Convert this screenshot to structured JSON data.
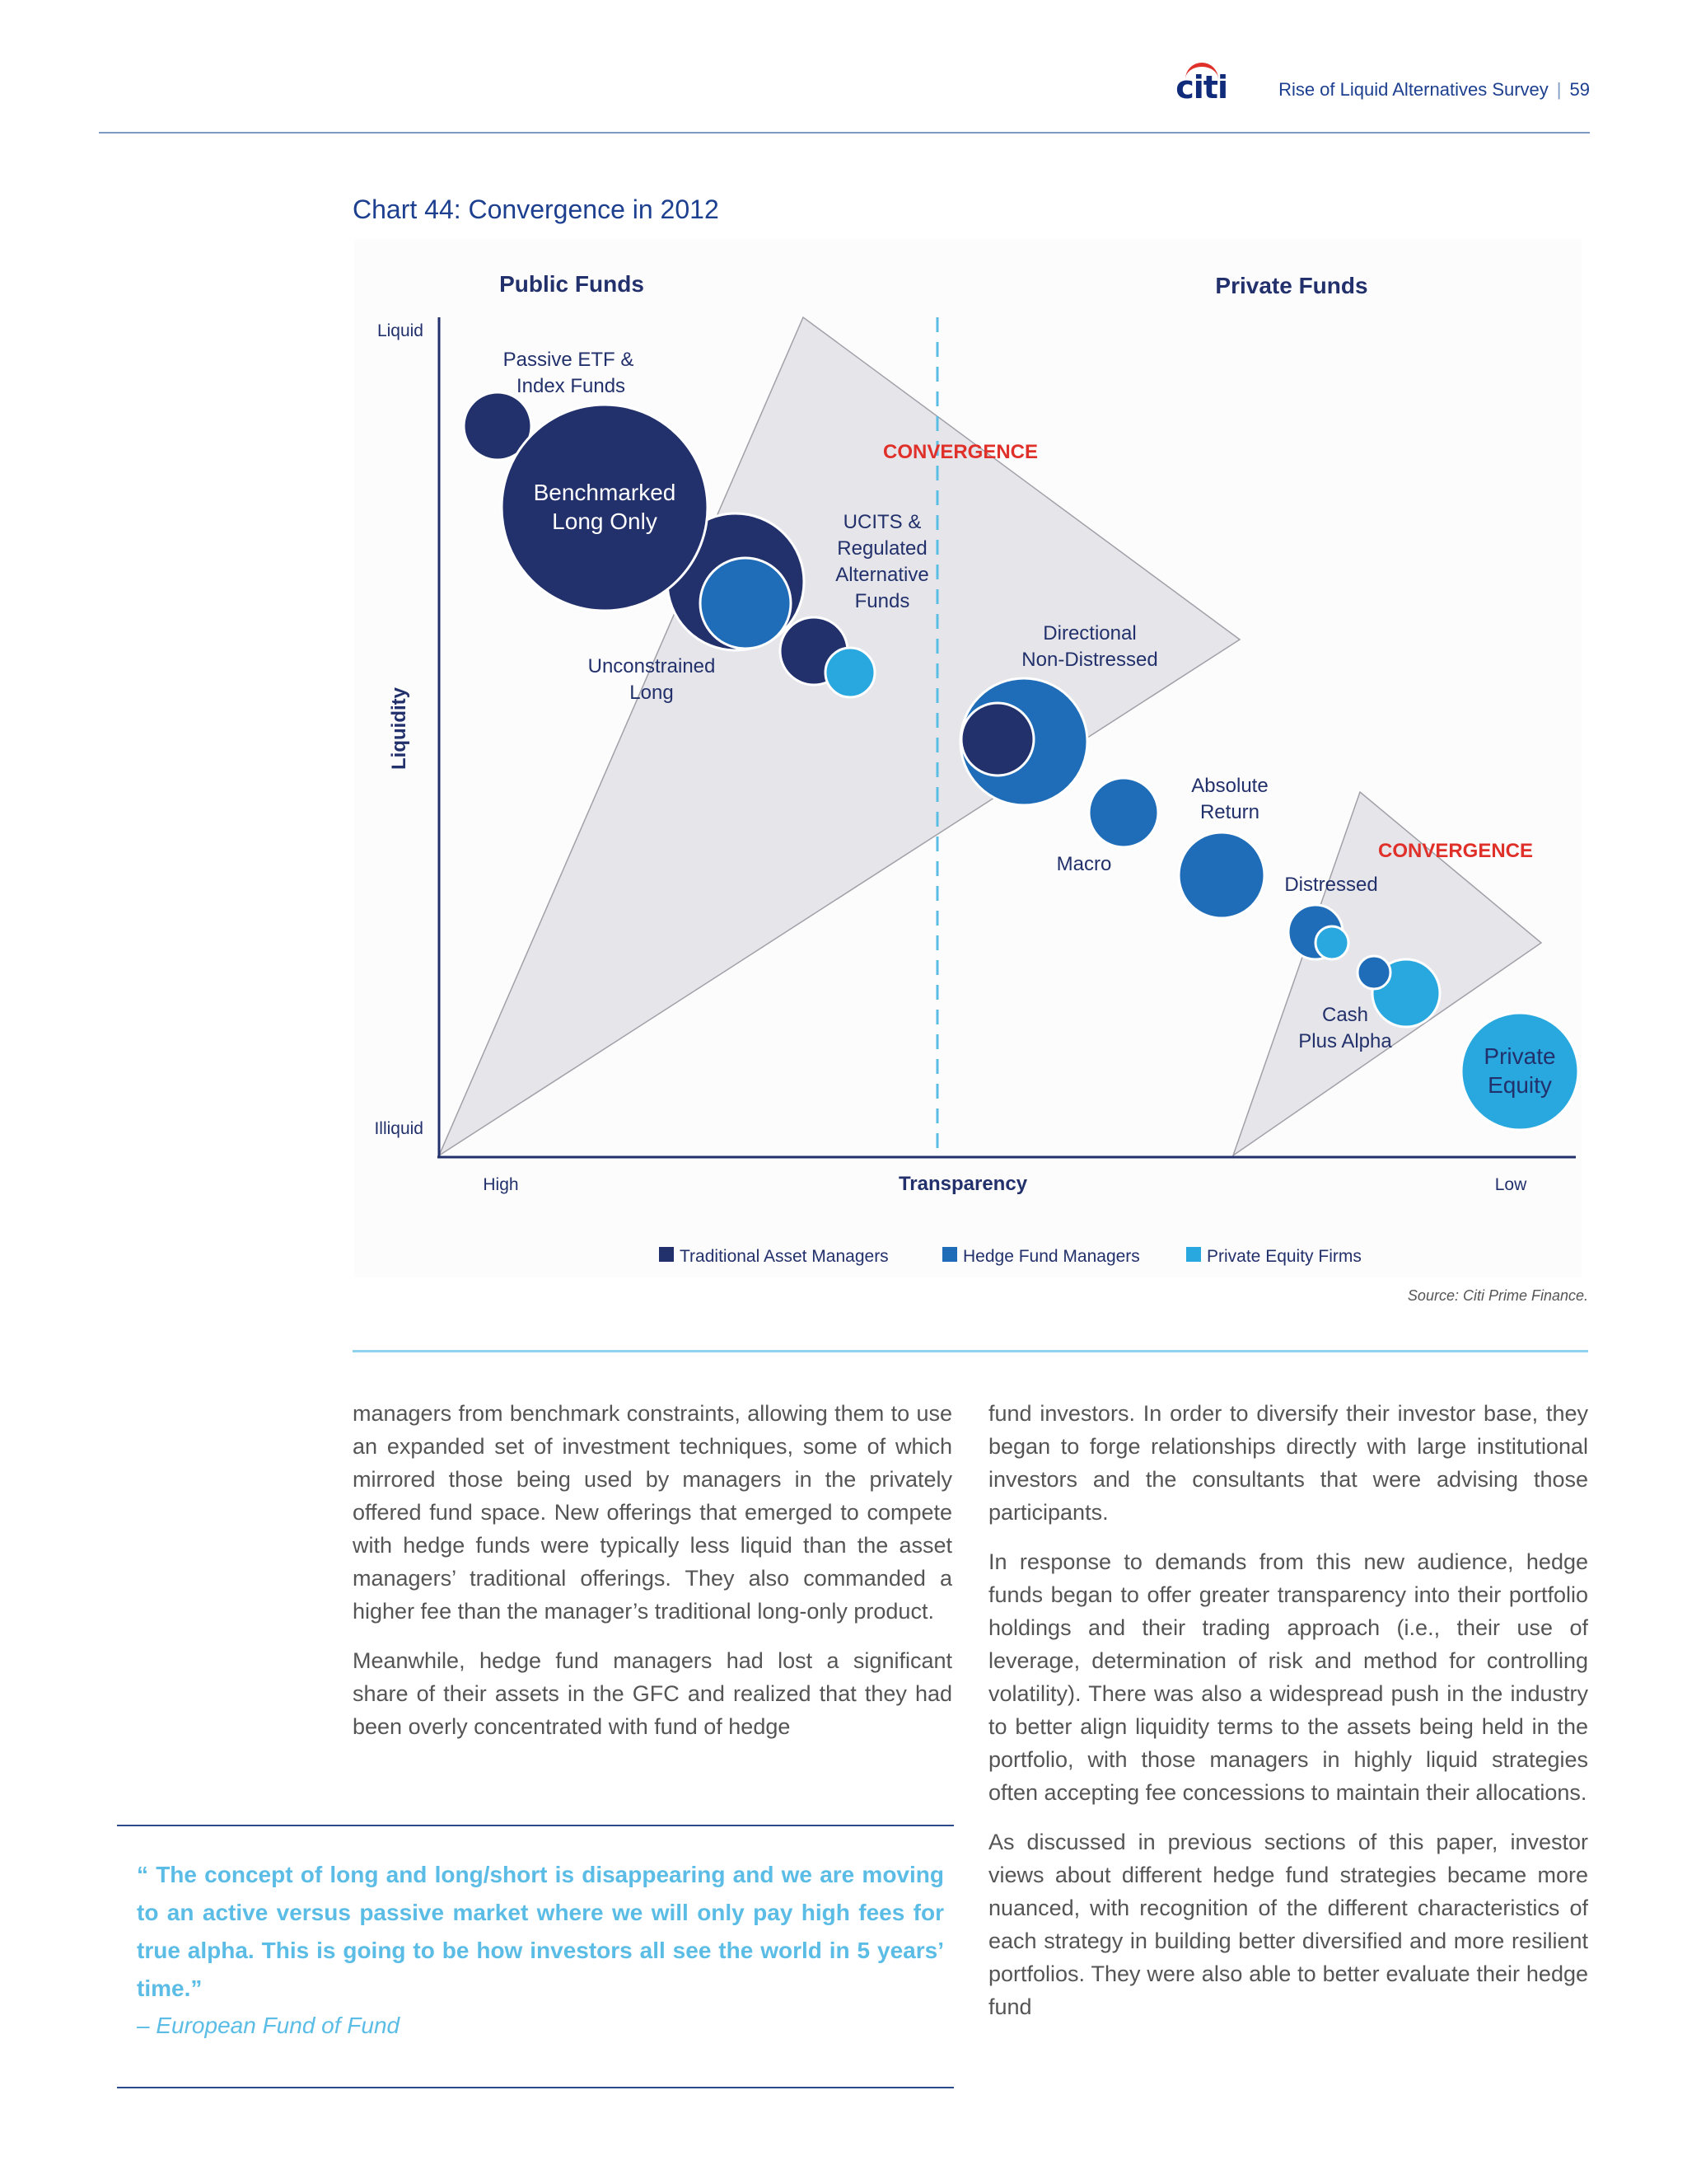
{
  "header": {
    "logo": "citi",
    "title": "Rise of Liquid Alternatives Survey",
    "page_number": "59"
  },
  "chart": {
    "title": "Chart 44: Convergence in 2012",
    "public_label": "Public Funds",
    "private_label": "Private Funds",
    "y_axis_label": "Liquidity",
    "y_top": "Liquid",
    "y_bottom": "Illiquid",
    "x_axis_label": "Transparency",
    "x_left": "High",
    "x_right": "Low",
    "convergence_1": "CONVERGENCE",
    "convergence_2": "CONVERGENCE",
    "labels": {
      "passive_1": "Passive ETF &",
      "passive_2": "Index Funds",
      "benchmarked_1": "Benchmarked",
      "benchmarked_2": "Long Only",
      "ucits_1": "UCITS &",
      "ucits_2": "Regulated",
      "ucits_3": "Alternative",
      "ucits_4": "Funds",
      "unconstrained_1": "Unconstrained",
      "unconstrained_2": "Long",
      "directional_1": "Directional",
      "directional_2": "Non-Distressed",
      "absolute_1": "Absolute",
      "absolute_2": "Return",
      "macro": "Macro",
      "distressed": "Distressed",
      "cash_1": "Cash",
      "cash_2": "Plus Alpha",
      "pe_1": "Private",
      "pe_2": "Equity"
    },
    "legend": [
      {
        "label": "Traditional Asset Managers",
        "color": "#22306b"
      },
      {
        "label": "Hedge Fund Managers",
        "color": "#1f6db8"
      },
      {
        "label": "Private Equity Firms",
        "color": "#28a8de"
      }
    ],
    "source": "Source: Citi Prime Finance."
  },
  "body": {
    "left_p1": "managers from benchmark constraints, allowing them to use an expanded set of investment techniques, some of which mirrored those being used by managers in the privately offered fund space. New offerings that emerged to compete with hedge funds were typically less liquid than the asset managers’ traditional offerings.  They also commanded a higher fee than the manager’s traditional long-only product.",
    "left_p2": "Meanwhile, hedge fund managers had lost a significant share of their assets in the GFC and realized that they had been overly concentrated with fund of hedge",
    "right_p1": "fund investors.  In order to diversify their investor base, they began to forge relationships directly with large institutional investors and the consultants that were advising those participants.",
    "right_p2": "In response to demands from this new audience, hedge funds began to offer greater transparency into their portfolio holdings and their trading approach (i.e., their use of leverage, determination of risk and method for controlling volatility).  There was also a widespread push in the industry to better align liquidity terms to the assets being held in the portfolio, with those managers in highly liquid strategies often accepting fee concessions to maintain their allocations.",
    "right_p3": "As discussed in previous sections of this paper, investor views about different hedge fund strategies became more nuanced, with recognition of the different characteristics of each strategy in building better diversified and more resilient portfolios.  They were also able to better evaluate their hedge fund"
  },
  "quote": {
    "text": "“ The concept of long and long/short is disappearing and we are moving to an active versus passive market where we will only pay high fees for true alpha.  This is going to be how investors all see the world in 5 years’ time.”",
    "attribution": "– European Fund of Fund"
  }
}
